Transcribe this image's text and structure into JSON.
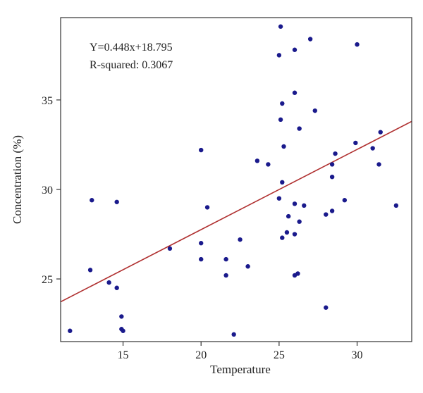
{
  "chart_data": {
    "type": "scatter",
    "xlabel": "Temperature",
    "ylabel": "Concentration (%)",
    "xlim": [
      11,
      33.5
    ],
    "ylim": [
      21.5,
      39.6
    ],
    "xticks": [
      15,
      20,
      25,
      30
    ],
    "yticks": [
      25,
      30,
      35
    ],
    "grid": false,
    "annotations": [
      "Y=0.448x+18.795",
      "R-squared: 0.3067"
    ],
    "colors": {
      "point": "#1a1a8c",
      "fit_line": "#b03030",
      "frame": "#333333"
    },
    "fit_line": {
      "slope": 0.448,
      "intercept": 18.795
    },
    "points": [
      {
        "x": 11.6,
        "y": 22.1
      },
      {
        "x": 12.9,
        "y": 25.5
      },
      {
        "x": 13.0,
        "y": 29.4
      },
      {
        "x": 14.1,
        "y": 24.8
      },
      {
        "x": 14.6,
        "y": 24.5
      },
      {
        "x": 14.6,
        "y": 29.3
      },
      {
        "x": 14.9,
        "y": 22.9
      },
      {
        "x": 14.9,
        "y": 22.2
      },
      {
        "x": 15.0,
        "y": 22.1
      },
      {
        "x": 18.0,
        "y": 26.7
      },
      {
        "x": 20.0,
        "y": 32.2
      },
      {
        "x": 20.0,
        "y": 27.0
      },
      {
        "x": 20.0,
        "y": 26.1
      },
      {
        "x": 20.4,
        "y": 29.0
      },
      {
        "x": 21.6,
        "y": 26.1
      },
      {
        "x": 21.6,
        "y": 25.2
      },
      {
        "x": 22.1,
        "y": 21.9
      },
      {
        "x": 22.5,
        "y": 27.2
      },
      {
        "x": 23.0,
        "y": 25.7
      },
      {
        "x": 23.6,
        "y": 31.6
      },
      {
        "x": 24.3,
        "y": 31.4
      },
      {
        "x": 25.0,
        "y": 37.5
      },
      {
        "x": 25.0,
        "y": 29.5
      },
      {
        "x": 25.1,
        "y": 39.1
      },
      {
        "x": 25.1,
        "y": 33.9
      },
      {
        "x": 25.2,
        "y": 34.8
      },
      {
        "x": 25.2,
        "y": 30.4
      },
      {
        "x": 25.2,
        "y": 27.3
      },
      {
        "x": 25.3,
        "y": 32.4
      },
      {
        "x": 25.5,
        "y": 27.6
      },
      {
        "x": 25.6,
        "y": 28.5
      },
      {
        "x": 26.0,
        "y": 37.8
      },
      {
        "x": 26.0,
        "y": 35.4
      },
      {
        "x": 26.0,
        "y": 29.2
      },
      {
        "x": 26.0,
        "y": 27.5
      },
      {
        "x": 26.0,
        "y": 25.2
      },
      {
        "x": 26.2,
        "y": 25.3
      },
      {
        "x": 26.3,
        "y": 33.4
      },
      {
        "x": 26.3,
        "y": 28.2
      },
      {
        "x": 26.6,
        "y": 29.1
      },
      {
        "x": 27.0,
        "y": 38.4
      },
      {
        "x": 27.3,
        "y": 34.4
      },
      {
        "x": 28.0,
        "y": 28.6
      },
      {
        "x": 28.0,
        "y": 23.4
      },
      {
        "x": 28.4,
        "y": 31.4
      },
      {
        "x": 28.4,
        "y": 30.7
      },
      {
        "x": 28.4,
        "y": 28.8
      },
      {
        "x": 28.6,
        "y": 32.0
      },
      {
        "x": 29.2,
        "y": 29.4
      },
      {
        "x": 29.9,
        "y": 32.6
      },
      {
        "x": 30.0,
        "y": 38.1
      },
      {
        "x": 31.0,
        "y": 32.3
      },
      {
        "x": 31.4,
        "y": 31.4
      },
      {
        "x": 31.5,
        "y": 33.2
      },
      {
        "x": 32.5,
        "y": 29.1
      }
    ]
  }
}
